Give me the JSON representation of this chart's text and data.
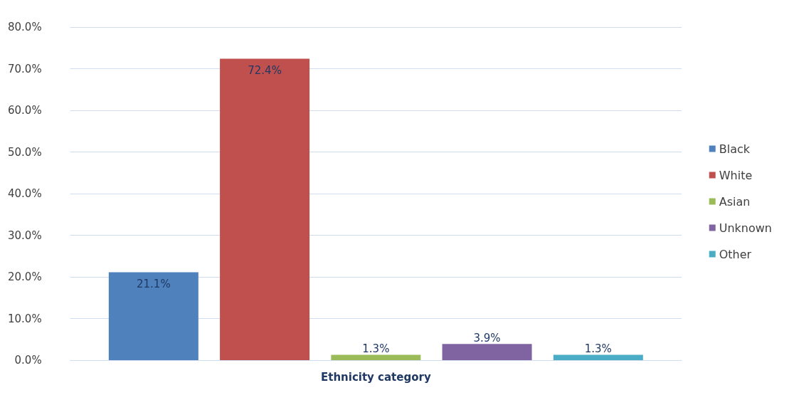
{
  "chart_data": {
    "type": "bar",
    "xlabel": "Ethnicity category",
    "categories": [
      null
    ],
    "series": [
      {
        "name": "Black",
        "color": "#4f81bd",
        "values": [
          21.1
        ],
        "value_labels": [
          "21.1%"
        ]
      },
      {
        "name": "White",
        "color": "#c0504d",
        "values": [
          72.4
        ],
        "value_labels": [
          "72.4%"
        ]
      },
      {
        "name": "Asian",
        "color": "#9bbb59",
        "values": [
          1.3
        ],
        "value_labels": [
          "1.3%"
        ]
      },
      {
        "name": "Unknown",
        "color": "#8064a2",
        "values": [
          3.9
        ],
        "value_labels": [
          "3.9%"
        ]
      },
      {
        "name": "Other",
        "color": "#4bacc6",
        "values": [
          1.3
        ],
        "value_labels": [
          "1.3%"
        ]
      }
    ],
    "ylim": [
      0,
      80
    ],
    "yticks": [
      {
        "value": 0,
        "label": "0.0%"
      },
      {
        "value": 10,
        "label": "10.0%"
      },
      {
        "value": 20,
        "label": "20.0%"
      },
      {
        "value": 30,
        "label": "30.0%"
      },
      {
        "value": 40,
        "label": "40.0%"
      },
      {
        "value": 50,
        "label": "50.0%"
      },
      {
        "value": 60,
        "label": "60.0%"
      },
      {
        "value": 70,
        "label": "70.0%"
      },
      {
        "value": 80,
        "label": "80.0%"
      }
    ],
    "grid": "y",
    "legend": "right"
  }
}
